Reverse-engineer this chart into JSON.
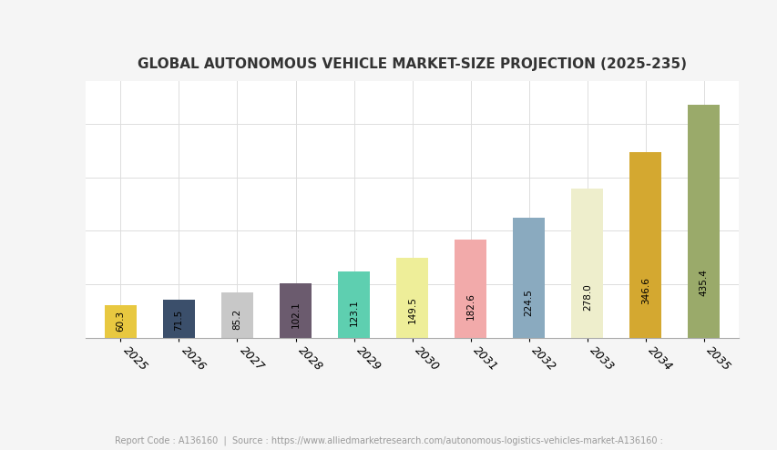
{
  "title": "GLOBAL AUTONOMOUS VEHICLE MARKET-SIZE PROJECTION (2025-235)",
  "years": [
    "2025",
    "2026",
    "2027",
    "2028",
    "2029",
    "2030",
    "2031",
    "2032",
    "2033",
    "2034",
    "2035"
  ],
  "values": [
    60.3,
    71.5,
    85.2,
    102.1,
    123.1,
    149.5,
    182.6,
    224.5,
    278.0,
    346.6,
    435.4
  ],
  "bar_colors": [
    "#E8C840",
    "#3B4F6B",
    "#C8C8C8",
    "#6B5B6E",
    "#5ECFB0",
    "#EEEE99",
    "#F2AAAA",
    "#8AAABF",
    "#EEEECC",
    "#D4A830",
    "#9AAA6A"
  ],
  "footer": "Report Code : A136160  |  Source : https://www.alliedmarketresearch.com/autonomous-logistics-vehicles-market-A136160 :",
  "background_color": "#f5f5f5",
  "plot_bg_color": "#ffffff",
  "ylim": [
    0,
    480
  ],
  "bar_label_fontsize": 7.5,
  "title_fontsize": 11,
  "footer_fontsize": 7
}
